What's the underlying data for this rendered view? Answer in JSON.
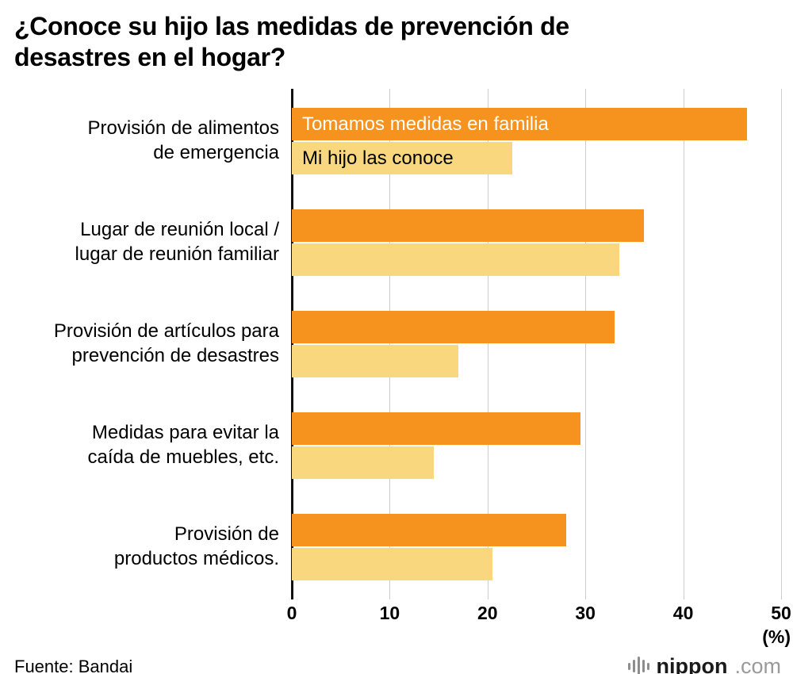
{
  "title": "¿Conoce su hijo las medidas de prevención de\ndesastres en el hogar?",
  "source": "Fuente: Bandai",
  "logo": {
    "name": "nippon",
    "tld": ".com"
  },
  "chart_data": {
    "type": "bar",
    "orientation": "horizontal",
    "title": "¿Conoce su hijo las medidas de prevención de desastres en el hogar?",
    "categories": [
      "Provisión de alimentos\nde emergencia",
      "Lugar de reunión local /\nlugar de reunión familiar",
      "Provisión de artículos para\nprevención de desastres",
      "Medidas para evitar la\ncaída de muebles, etc.",
      "Provisión de\nproductos médicos."
    ],
    "series": [
      {
        "name": "Tomamos medidas en familia",
        "color": "#F6921E",
        "values": [
          46.5,
          36,
          33,
          29.5,
          28
        ]
      },
      {
        "name": "Mi hijo las conoce",
        "color": "#F9D77E",
        "values": [
          22.5,
          33.5,
          17,
          14.5,
          20.5
        ]
      }
    ],
    "xlim": [
      0,
      50
    ],
    "xticks": [
      0,
      10,
      20,
      30,
      40,
      50
    ],
    "x_unit": "(%)",
    "grid": true,
    "legend_position": "inside-first-bars"
  }
}
